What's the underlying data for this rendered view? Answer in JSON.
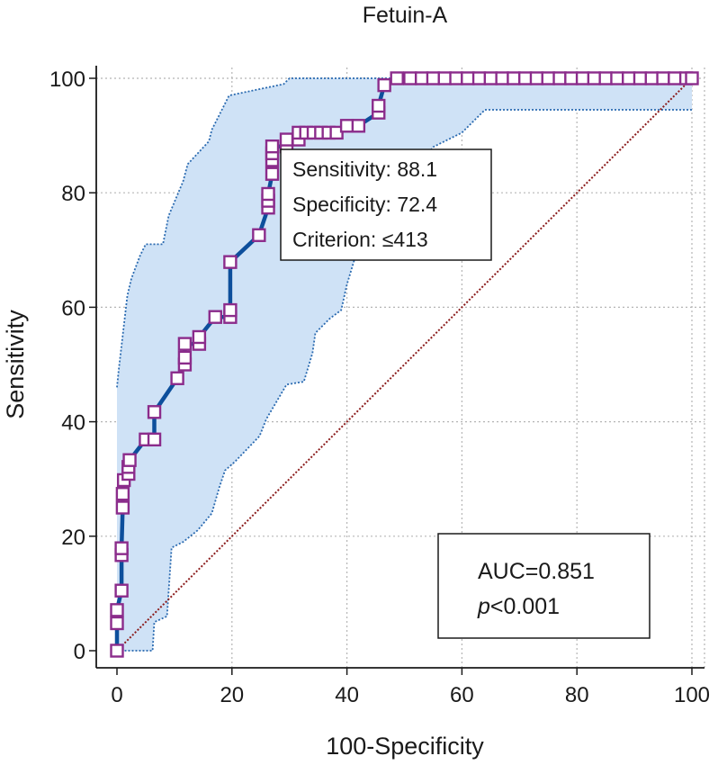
{
  "chart_data": {
    "type": "line",
    "title": "Fetuin-A",
    "xlabel": "100-Specificity",
    "ylabel": "Sensitivity",
    "xlim": [
      0,
      100
    ],
    "ylim": [
      0,
      100
    ],
    "xticks": [
      "0",
      "20",
      "40",
      "60",
      "80",
      "100"
    ],
    "yticks": [
      "0",
      "20",
      "40",
      "60",
      "80",
      "100"
    ],
    "grid": true,
    "roc_points": [
      [
        0,
        0
      ],
      [
        0,
        4.8
      ],
      [
        0,
        7.1
      ],
      [
        0.8,
        10.5
      ],
      [
        0.8,
        16.7
      ],
      [
        0.8,
        17.9
      ],
      [
        1.0,
        25.0
      ],
      [
        1.0,
        27.4
      ],
      [
        1.2,
        29.8
      ],
      [
        2.0,
        30.9
      ],
      [
        2.0,
        32.1
      ],
      [
        2.2,
        33.3
      ],
      [
        5.0,
        36.9
      ],
      [
        6.5,
        36.9
      ],
      [
        6.5,
        41.7
      ],
      [
        10.5,
        47.6
      ],
      [
        11.8,
        50.0
      ],
      [
        11.8,
        51.2
      ],
      [
        11.8,
        53.6
      ],
      [
        14.3,
        53.6
      ],
      [
        14.3,
        54.8
      ],
      [
        17.1,
        58.3
      ],
      [
        19.7,
        58.3
      ],
      [
        19.7,
        59.5
      ],
      [
        19.7,
        67.9
      ],
      [
        24.7,
        72.6
      ],
      [
        26.3,
        77.4
      ],
      [
        26.3,
        78.6
      ],
      [
        26.3,
        79.8
      ],
      [
        27.0,
        83.3
      ],
      [
        27.0,
        85.7
      ],
      [
        27.0,
        86.9
      ],
      [
        27.0,
        88.1
      ],
      [
        29.5,
        88.1
      ],
      [
        29.5,
        89.3
      ],
      [
        31.6,
        89.3
      ],
      [
        31.6,
        90.5
      ],
      [
        32.9,
        90.5
      ],
      [
        34.2,
        90.5
      ],
      [
        35.5,
        90.5
      ],
      [
        36.8,
        90.5
      ],
      [
        38.2,
        90.5
      ],
      [
        40.0,
        91.7
      ],
      [
        42.0,
        91.7
      ],
      [
        45.5,
        94.0
      ],
      [
        45.5,
        95.2
      ],
      [
        46.5,
        98.8
      ],
      [
        48.7,
        100
      ],
      [
        51,
        100
      ],
      [
        53,
        100
      ],
      [
        55,
        100
      ],
      [
        57,
        100
      ],
      [
        59,
        100
      ],
      [
        61,
        100
      ],
      [
        63,
        100
      ],
      [
        65,
        100
      ],
      [
        67,
        100
      ],
      [
        69,
        100
      ],
      [
        71,
        100
      ],
      [
        73,
        100
      ],
      [
        75,
        100
      ],
      [
        77,
        100
      ],
      [
        79,
        100
      ],
      [
        81,
        100
      ],
      [
        83,
        100
      ],
      [
        85,
        100
      ],
      [
        87,
        100
      ],
      [
        89,
        100
      ],
      [
        91,
        100
      ],
      [
        93,
        100
      ],
      [
        95,
        100
      ],
      [
        97,
        100
      ],
      [
        99,
        100
      ],
      [
        100,
        100
      ]
    ],
    "ci_upper": [
      [
        0,
        46
      ],
      [
        0.3,
        49
      ],
      [
        1.8,
        62
      ],
      [
        2.5,
        65
      ],
      [
        4,
        69
      ],
      [
        5,
        71
      ],
      [
        8,
        71
      ],
      [
        9,
        76
      ],
      [
        11.5,
        82
      ],
      [
        12.3,
        85
      ],
      [
        16,
        89
      ],
      [
        16.5,
        91
      ],
      [
        18,
        94
      ],
      [
        19.5,
        97
      ],
      [
        29,
        99
      ],
      [
        30,
        100
      ],
      [
        100,
        100
      ]
    ],
    "ci_lower": [
      [
        100,
        94.5
      ],
      [
        64,
        94.5
      ],
      [
        63,
        93.5
      ],
      [
        60,
        90.5
      ],
      [
        55,
        88
      ],
      [
        51,
        83
      ],
      [
        45,
        81
      ],
      [
        43,
        74
      ],
      [
        40,
        64
      ],
      [
        39,
        59.5
      ],
      [
        37,
        58
      ],
      [
        34.5,
        55.5
      ],
      [
        34,
        52
      ],
      [
        32.5,
        47
      ],
      [
        29.5,
        46.5
      ],
      [
        26,
        40.5
      ],
      [
        24.8,
        37.5
      ],
      [
        20.5,
        33
      ],
      [
        18.8,
        31.5
      ],
      [
        17.8,
        28.5
      ],
      [
        16.5,
        24
      ],
      [
        14,
        21
      ],
      [
        11.5,
        19
      ],
      [
        9.5,
        18
      ],
      [
        8.7,
        6
      ],
      [
        6.5,
        5
      ],
      [
        6.2,
        0
      ],
      [
        1,
        0
      ],
      [
        0,
        0
      ]
    ],
    "reference_line": [
      [
        0,
        0
      ],
      [
        100,
        100
      ]
    ],
    "annotation_criterion": [
      "Sensitivity: 88.1",
      "Specificity: 72.4",
      "Criterion: ≤413"
    ],
    "annotation_auc": {
      "auc": "AUC=0.851",
      "p_symbol": "p",
      "p_value": "<0.001"
    },
    "colors": {
      "roc_line": "#0d4f9c",
      "marker_edge": "#8b2c8b",
      "marker_fill": "#ffffff",
      "ci_fill": "#cfe2f6",
      "ci_edge": "#2a6ab0",
      "reference": "#8b1c1c",
      "grid": "#b5b5b5"
    }
  }
}
